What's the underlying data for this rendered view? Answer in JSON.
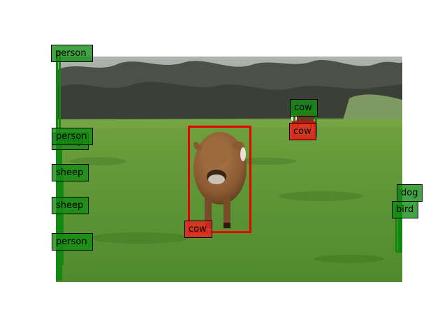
{
  "colors": {
    "background": "#ffffff",
    "cow_box": "#e60000",
    "cow_label_bg": "rgba(230,40,30,0.85)",
    "other_box": "#118811",
    "other_label_bg": "rgba(20,140,20,0.80)"
  },
  "detections": [
    {
      "id": "person-top-left",
      "label": "person",
      "color": "green"
    },
    {
      "id": "cow-back-upper",
      "label": "cow",
      "color": "green"
    },
    {
      "id": "cow-back-lower",
      "label": "cow",
      "color": "red"
    },
    {
      "id": "person-left-upper",
      "label": "person",
      "color": "green"
    },
    {
      "id": "sheep-left-hidden",
      "label": "sheep",
      "color": "green"
    },
    {
      "id": "sheep-left-1",
      "label": "sheep",
      "color": "green"
    },
    {
      "id": "sheep-left-2",
      "label": "sheep",
      "color": "green"
    },
    {
      "id": "person-left-lower",
      "label": "person",
      "color": "green"
    },
    {
      "id": "cow-main",
      "label": "cow",
      "color": "red"
    },
    {
      "id": "dog-right",
      "label": "dog",
      "color": "green"
    },
    {
      "id": "bird-right",
      "label": "bird",
      "color": "green"
    }
  ]
}
